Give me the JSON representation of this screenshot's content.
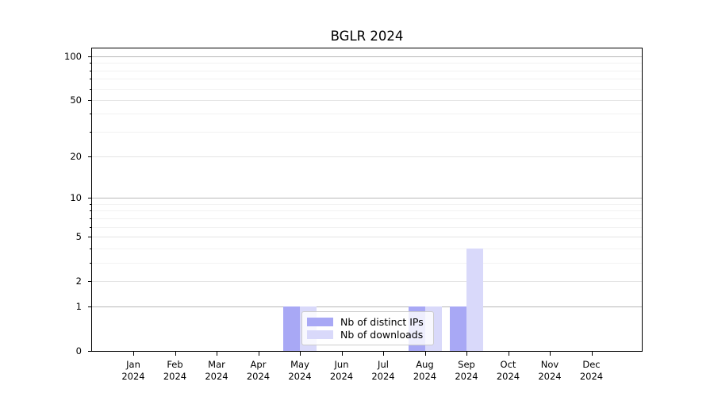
{
  "chart_data": {
    "type": "bar",
    "title": "BGLR 2024",
    "categories": [
      "Jan",
      "Feb",
      "Mar",
      "Apr",
      "May",
      "Jun",
      "Jul",
      "Aug",
      "Sep",
      "Oct",
      "Nov",
      "Dec"
    ],
    "year_label": "2024",
    "series": [
      {
        "key": "distinct-ips",
        "name": "Nb of distinct IPs",
        "color": "#a8a8f5",
        "values": [
          0,
          0,
          0,
          0,
          1,
          0,
          0,
          1,
          1,
          0,
          0,
          0
        ]
      },
      {
        "key": "downloads",
        "name": "Nb of downloads",
        "color": "#d9d9fa",
        "values": [
          0,
          0,
          0,
          0,
          1,
          0,
          0,
          1,
          4,
          0,
          0,
          0
        ]
      }
    ],
    "y_scale": "log1p",
    "y_ticks": [
      0,
      1,
      2,
      5,
      10,
      20,
      50,
      100
    ],
    "y_minor_ticks": [
      3,
      4,
      6,
      7,
      8,
      9,
      30,
      40,
      60,
      70,
      80,
      90
    ],
    "ylim": [
      0,
      113
    ],
    "legend_position": "lower center",
    "grid": "horizontal",
    "colors": {
      "decade_gridline": "#b8b8b8",
      "major_gridline": "#e4e4e4",
      "minor_gridline": "#f2f2f2",
      "axis": "#000000"
    }
  }
}
